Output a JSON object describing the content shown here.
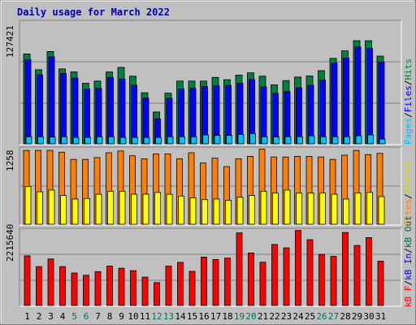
{
  "title": "Daily usage for March 2022",
  "colors": {
    "background": "#c0c0c0",
    "title": "#0000b0",
    "hits": "#008040",
    "files": "#0000ff",
    "pages": "#00c0ff",
    "visits": "#ffff00",
    "sites": "#ff8000",
    "kb_in": "#ff0000",
    "kb_out": "#007040",
    "day_weekday": "#000000",
    "day_weekend": "#007060"
  },
  "chart_data": [
    {
      "type": "bar",
      "panel": "hits-files-pages",
      "categories": [
        "1",
        "2",
        "3",
        "4",
        "5",
        "6",
        "7",
        "8",
        "9",
        "10",
        "11",
        "12",
        "13",
        "14",
        "15",
        "16",
        "17",
        "18",
        "19",
        "20",
        "21",
        "22",
        "23",
        "24",
        "25",
        "26",
        "27",
        "28",
        "29",
        "30",
        "31"
      ],
      "weekend_days": [
        "5",
        "6",
        "12",
        "13",
        "19",
        "20",
        "26",
        "27"
      ],
      "y_label": "127421",
      "ymax": 127421,
      "legend": [
        "Pages",
        "Files",
        "Hits"
      ],
      "series": [
        {
          "name": "Hits",
          "values": [
            94000,
            77500,
            96500,
            78300,
            75200,
            63300,
            65600,
            75200,
            79900,
            70700,
            53400,
            33300,
            53000,
            65600,
            65600,
            65600,
            69400,
            67000,
            71800,
            74200,
            70700,
            61700,
            66100,
            69800,
            70900,
            76500,
            89300,
            97200,
            107800,
            107800,
            91700
          ]
        },
        {
          "name": "Files",
          "values": [
            88000,
            72200,
            90900,
            73500,
            68700,
            57400,
            57900,
            69400,
            67700,
            61400,
            47800,
            26100,
            47500,
            57400,
            57900,
            59900,
            60800,
            61200,
            63300,
            67400,
            59500,
            52900,
            54600,
            58600,
            61200,
            66600,
            84400,
            89600,
            101200,
            99900,
            85500
          ]
        },
        {
          "name": "Pages",
          "values": [
            7400,
            7400,
            7100,
            7400,
            6700,
            6700,
            7400,
            7400,
            6700,
            6700,
            6700,
            6700,
            7400,
            7400,
            7400,
            9300,
            8800,
            8800,
            9700,
            10800,
            7400,
            7100,
            7400,
            7400,
            8400,
            7400,
            7400,
            7400,
            8400,
            9300,
            5000
          ]
        }
      ]
    },
    {
      "type": "bar",
      "panel": "visits-sites",
      "categories": [
        "1",
        "2",
        "3",
        "4",
        "5",
        "6",
        "7",
        "8",
        "9",
        "10",
        "11",
        "12",
        "13",
        "14",
        "15",
        "16",
        "17",
        "18",
        "19",
        "20",
        "21",
        "22",
        "23",
        "24",
        "25",
        "26",
        "27",
        "28",
        "29",
        "30",
        "31"
      ],
      "y_label": "1258",
      "ymax": 1258,
      "legend": [
        "Sites",
        "Visits"
      ],
      "series": [
        {
          "name": "Sites",
          "values": [
            1230,
            1230,
            1230,
            1200,
            1080,
            1080,
            1110,
            1190,
            1220,
            1140,
            1090,
            1170,
            1170,
            1090,
            1190,
            1020,
            1100,
            960,
            1090,
            1130,
            1250,
            1120,
            1120,
            1130,
            1130,
            1120,
            1080,
            1150,
            1230,
            1160,
            1180
          ]
        },
        {
          "name": "Visits",
          "values": [
            630,
            540,
            570,
            480,
            420,
            430,
            500,
            550,
            550,
            500,
            500,
            530,
            500,
            470,
            440,
            410,
            420,
            400,
            450,
            480,
            550,
            520,
            570,
            520,
            520,
            520,
            500,
            420,
            520,
            530,
            460
          ]
        }
      ]
    },
    {
      "type": "bar",
      "panel": "kb-in-out",
      "categories": [
        "1",
        "2",
        "3",
        "4",
        "5",
        "6",
        "7",
        "8",
        "9",
        "10",
        "11",
        "12",
        "13",
        "14",
        "15",
        "16",
        "17",
        "18",
        "19",
        "20",
        "21",
        "22",
        "23",
        "24",
        "25",
        "26",
        "27",
        "28",
        "29",
        "30",
        "31"
      ],
      "y_label": "2215640",
      "ymax": 2215640,
      "legend": [
        "kB F",
        "kB In",
        "kB Out"
      ],
      "series": [
        {
          "name": "kB F",
          "values": [
            1455800,
            1140400,
            1364900,
            1140400,
            952500,
            886900,
            993300,
            1155300,
            1093000,
            1020400,
            832400,
            672400,
            1155300,
            1264600,
            1000100,
            1419900,
            1350000,
            1390000,
            2130000,
            1540000,
            1270000,
            1790000,
            1690000,
            2200000,
            1930000,
            1500000,
            1440000,
            2140000,
            1760000,
            1990000,
            1300000
          ]
        }
      ]
    }
  ]
}
